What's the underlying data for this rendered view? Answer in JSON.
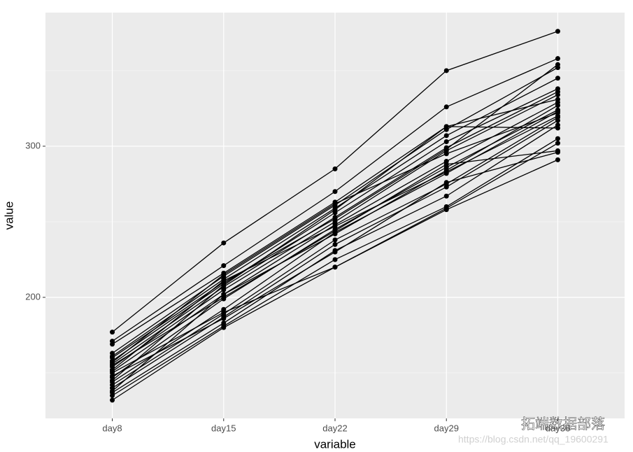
{
  "chart_data": {
    "type": "line",
    "x_label": "variable",
    "y_label": "value",
    "categories": [
      "day8",
      "day15",
      "day22",
      "day29",
      "day36"
    ],
    "ylim": [
      119.9,
      388.4
    ],
    "yticks": [
      200,
      300
    ],
    "minor_yticks": [
      150,
      250,
      350
    ],
    "grid": true,
    "background": "#ebebeb",
    "line_color": "#000000",
    "series": [
      {
        "values": [
          177,
          236,
          285,
          350,
          376
        ]
      },
      {
        "values": [
          171,
          221,
          270,
          326,
          358
        ]
      },
      {
        "values": [
          169,
          216,
          263,
          313,
          331
        ]
      },
      {
        "values": [
          163,
          214,
          261,
          311,
          352
        ]
      },
      {
        "values": [
          161,
          212,
          259,
          307,
          345
        ]
      },
      {
        "values": [
          158,
          209,
          256,
          303,
          338
        ]
      },
      {
        "values": [
          156,
          207,
          253,
          299,
          336
        ]
      },
      {
        "values": [
          154,
          205,
          250,
          297,
          334
        ]
      },
      {
        "values": [
          151,
          202,
          248,
          290,
          329
        ]
      },
      {
        "values": [
          147,
          199,
          245,
          286,
          324
        ]
      },
      {
        "values": [
          144,
          192,
          243,
          282,
          323
        ]
      },
      {
        "values": [
          142,
          189,
          238,
          275,
          319
        ]
      },
      {
        "values": [
          140,
          187,
          235,
          273,
          317
        ]
      },
      {
        "values": [
          137,
          183,
          231,
          267,
          314
        ]
      },
      {
        "values": [
          135,
          181,
          225,
          260,
          305
        ]
      },
      {
        "values": [
          132,
          180,
          220,
          259,
          302
        ]
      },
      {
        "values": [
          160,
          210,
          252,
          298,
          354
        ]
      },
      {
        "values": [
          155,
          200,
          244,
          288,
          297
        ]
      },
      {
        "values": [
          150,
          190,
          220,
          258,
          291
        ]
      },
      {
        "values": [
          145,
          208,
          258,
          313,
          312
        ]
      },
      {
        "values": [
          152,
          211,
          247,
          283,
          320
        ]
      },
      {
        "values": [
          138,
          202,
          242,
          284,
          327
        ]
      },
      {
        "values": [
          148,
          186,
          230,
          276,
          296
        ]
      },
      {
        "values": [
          157,
          215,
          262,
          295,
          322
        ]
      }
    ],
    "annotations": [
      "拓端数据部落",
      "https://blog.csdn.net/qq_19600291"
    ]
  }
}
